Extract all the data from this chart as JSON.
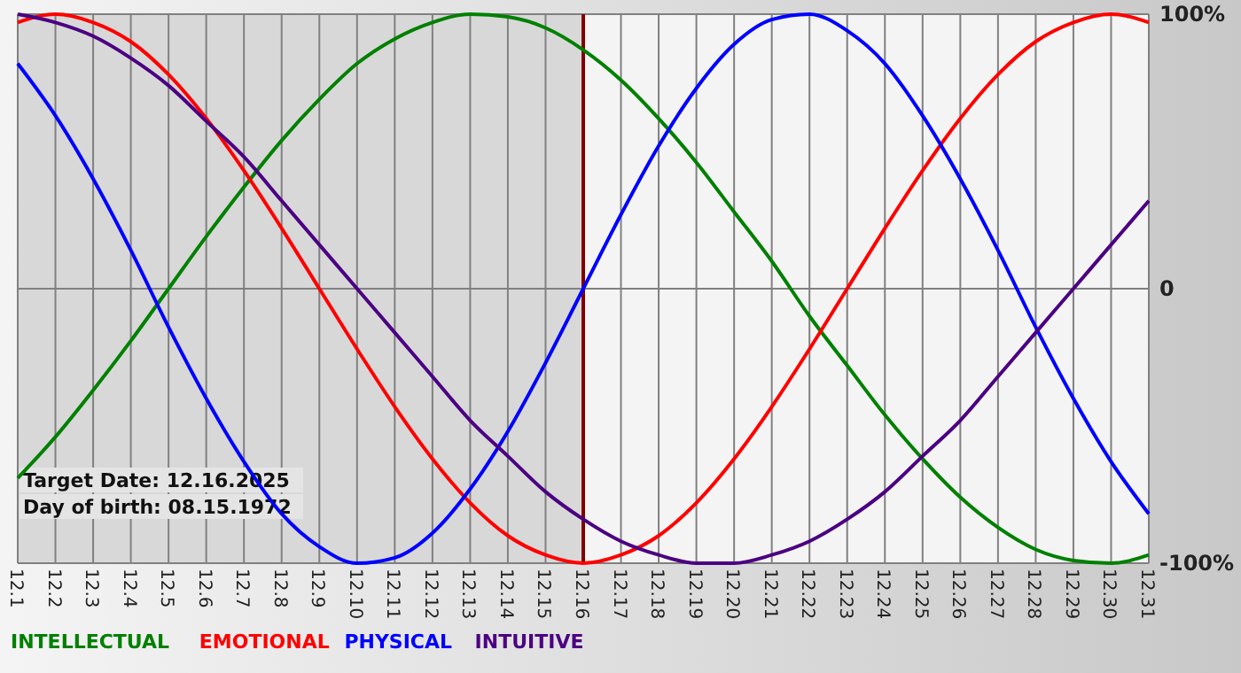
{
  "chart_data": {
    "type": "line",
    "categories": [
      "12.1",
      "12.2",
      "12.3",
      "12.4",
      "12.5",
      "12.6",
      "12.7",
      "12.8",
      "12.9",
      "12.10",
      "12.11",
      "12.12",
      "12.13",
      "12.14",
      "12.15",
      "12.16",
      "12.17",
      "12.18",
      "12.19",
      "12.20",
      "12.21",
      "12.22",
      "12.23",
      "12.24",
      "12.25",
      "12.26",
      "12.27",
      "12.28",
      "12.29",
      "12.30",
      "12.31"
    ],
    "series": [
      {
        "name": "INTELLECTUAL",
        "color": "#008000",
        "values": [
          -69,
          -54,
          -37,
          -19,
          0,
          19,
          37,
          54,
          69,
          82,
          91,
          97,
          100,
          99,
          95,
          87,
          76,
          62,
          46,
          28,
          10,
          -10,
          -28,
          -46,
          -62,
          -76,
          -87,
          -95,
          -99,
          -100,
          -97
        ]
      },
      {
        "name": "EMOTIONAL",
        "color": "#ff0000",
        "values": [
          97,
          100,
          97,
          90,
          78,
          62,
          43,
          22,
          0,
          -22,
          -43,
          -62,
          -78,
          -90,
          -97,
          -100,
          -97,
          -90,
          -78,
          -62,
          -43,
          -22,
          0,
          22,
          43,
          62,
          78,
          90,
          97,
          100,
          97
        ]
      },
      {
        "name": "PHYSICAL",
        "color": "#0000ff",
        "values": [
          82,
          63,
          40,
          14,
          -14,
          -40,
          -63,
          -82,
          -94,
          -100,
          -98,
          -89,
          -73,
          -52,
          -27,
          0,
          27,
          52,
          73,
          89,
          98,
          100,
          94,
          82,
          63,
          40,
          14,
          -14,
          -40,
          -63,
          -82
        ]
      },
      {
        "name": "INTUITIVE",
        "color": "#4b0082",
        "values": [
          100,
          97,
          92,
          84,
          74,
          61,
          48,
          32,
          16,
          0,
          -16,
          -32,
          -48,
          -61,
          -74,
          -84,
          -92,
          -97,
          -100,
          -100,
          -97,
          -92,
          -84,
          -74,
          -61,
          -48,
          -32,
          -16,
          0,
          16,
          32
        ]
      }
    ],
    "ylim": [
      -100,
      100
    ],
    "yticks": [
      {
        "value": -100,
        "label": "-100%"
      },
      0,
      {
        "value": 100,
        "label": "100%"
      }
    ],
    "grid": true,
    "legend": "bottom left",
    "marker": "none",
    "line_style": "solid",
    "ref_lines": [
      {
        "axis": "x",
        "value": "12.16",
        "color": "#800000"
      }
    ],
    "bands": [
      {
        "axis": "x",
        "from": "12.1",
        "to": "12.16",
        "color": "#d8d8d8"
      }
    ],
    "annotations": [
      "Target Date: 12.16.2025",
      "Day of birth: 08.15.1972"
    ]
  }
}
